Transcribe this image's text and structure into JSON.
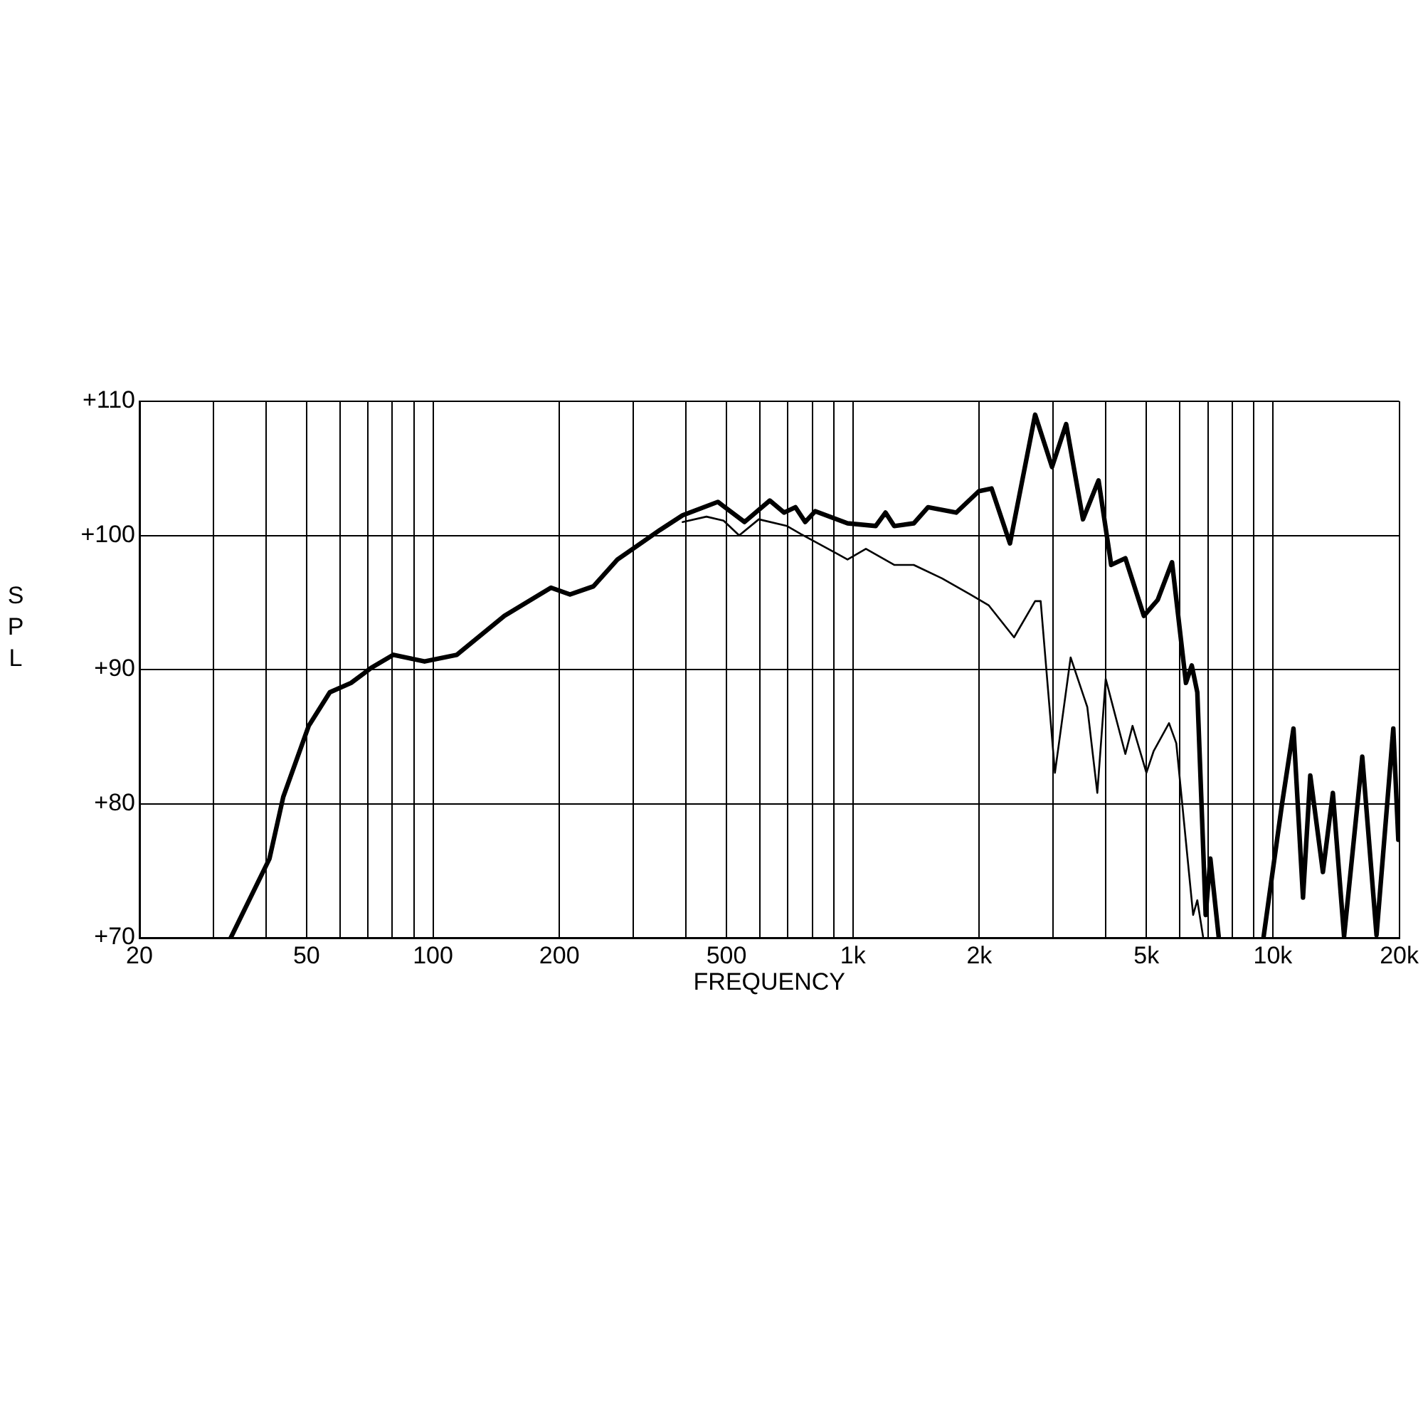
{
  "chart_data": {
    "type": "line",
    "xlabel": "FREQUENCY",
    "ylabel": "SPL",
    "log": "x",
    "grid": true,
    "legend": false,
    "marker": "none",
    "line_style": "solid",
    "xlim": [
      20,
      20000
    ],
    "ylim": [
      70,
      110
    ],
    "xticks": [
      20,
      {
        "value": 30,
        "label": null
      },
      {
        "value": 40,
        "label": null
      },
      50,
      {
        "value": 60,
        "label": null
      },
      {
        "value": 70,
        "label": null
      },
      {
        "value": 80,
        "label": null
      },
      {
        "value": 90,
        "label": null
      },
      100,
      200,
      {
        "value": 300,
        "label": null
      },
      {
        "value": 400,
        "label": null
      },
      500,
      {
        "value": 600,
        "label": null
      },
      {
        "value": 700,
        "label": null
      },
      {
        "value": 800,
        "label": null
      },
      {
        "value": 900,
        "label": null
      },
      {
        "value": 1000,
        "label": "1k"
      },
      {
        "value": 2000,
        "label": "2k"
      },
      {
        "value": 3000,
        "label": null
      },
      {
        "value": 4000,
        "label": null
      },
      {
        "value": 5000,
        "label": "5k"
      },
      {
        "value": 6000,
        "label": null
      },
      {
        "value": 7000,
        "label": null
      },
      {
        "value": 8000,
        "label": null
      },
      {
        "value": 9000,
        "label": null
      },
      {
        "value": 10000,
        "label": "10k"
      },
      {
        "value": 20000,
        "label": "20k"
      }
    ],
    "yticks": [
      {
        "value": 70,
        "label": "+70"
      },
      {
        "value": 80,
        "label": "+80"
      },
      {
        "value": 90,
        "label": "+90"
      },
      {
        "value": 100,
        "label": "+100"
      },
      {
        "value": 110,
        "label": "+110"
      }
    ],
    "series": [
      {
        "color": "#000000",
        "x": [
          33,
          40.8,
          44,
          50.6,
          56.8,
          63.8,
          71.1,
          80.5,
          95.5,
          114,
          148,
          191,
          212,
          241,
          275,
          347,
          393,
          477,
          552,
          634,
          686,
          730,
          770,
          813,
          971,
          1133,
          1196,
          1254,
          1396,
          1510,
          1762,
          1996,
          2139,
          2366,
          2716,
          2980,
          3220,
          3531,
          3846,
          4122,
          4455,
          4930,
          5322,
          5754,
          6210,
          6412,
          6610,
          6920,
          7100,
          7430,
          8500,
          9510,
          10520,
          11200,
          11800,
          12280,
          13160,
          13900,
          14780,
          16330,
          17660,
          19360,
          19900
        ],
        "values": [
          70,
          75.9,
          80.5,
          85.8,
          88.3,
          89,
          90.1,
          91.1,
          90.6,
          91.1,
          94,
          96.1,
          95.6,
          96.2,
          98.2,
          100.4,
          101.5,
          102.5,
          101,
          102.6,
          101.7,
          102.1,
          101,
          101.8,
          100.9,
          100.7,
          101.7,
          100.7,
          100.9,
          102.1,
          101.7,
          103.3,
          103.5,
          99.4,
          109,
          105.1,
          108.3,
          101.2,
          104.1,
          97.8,
          98.3,
          94,
          95.2,
          98,
          89,
          90.3,
          88.3,
          71.7,
          75.9,
          70.1,
          null,
          70.1,
          80,
          85.6,
          73,
          82.1,
          74.9,
          80.8,
          70.1,
          83.5,
          70.2,
          85.6,
          77.3
        ]
      },
      {
        "color": "#000000",
        "x": [
          393,
          448,
          492,
          536,
          597,
          697,
          752,
          921,
          971,
          1074,
          1254,
          1396,
          1630,
          1902,
          2104,
          2420,
          2716,
          2800,
          3028,
          3300,
          3616,
          3820,
          4000,
          4455,
          4634,
          5000,
          5200,
          5660,
          5890,
          6460,
          6610,
          6820
        ],
        "values": [
          101,
          101.4,
          101.1,
          100,
          101.2,
          100.7,
          100.1,
          98.6,
          98.2,
          99,
          97.8,
          97.8,
          96.8,
          95.6,
          94.8,
          92.4,
          95.1,
          95.1,
          82.3,
          90.9,
          87.2,
          80.8,
          89.3,
          83.7,
          85.8,
          82.3,
          83.9,
          86,
          84.5,
          71.7,
          72.8,
          70.1
        ]
      }
    ]
  }
}
